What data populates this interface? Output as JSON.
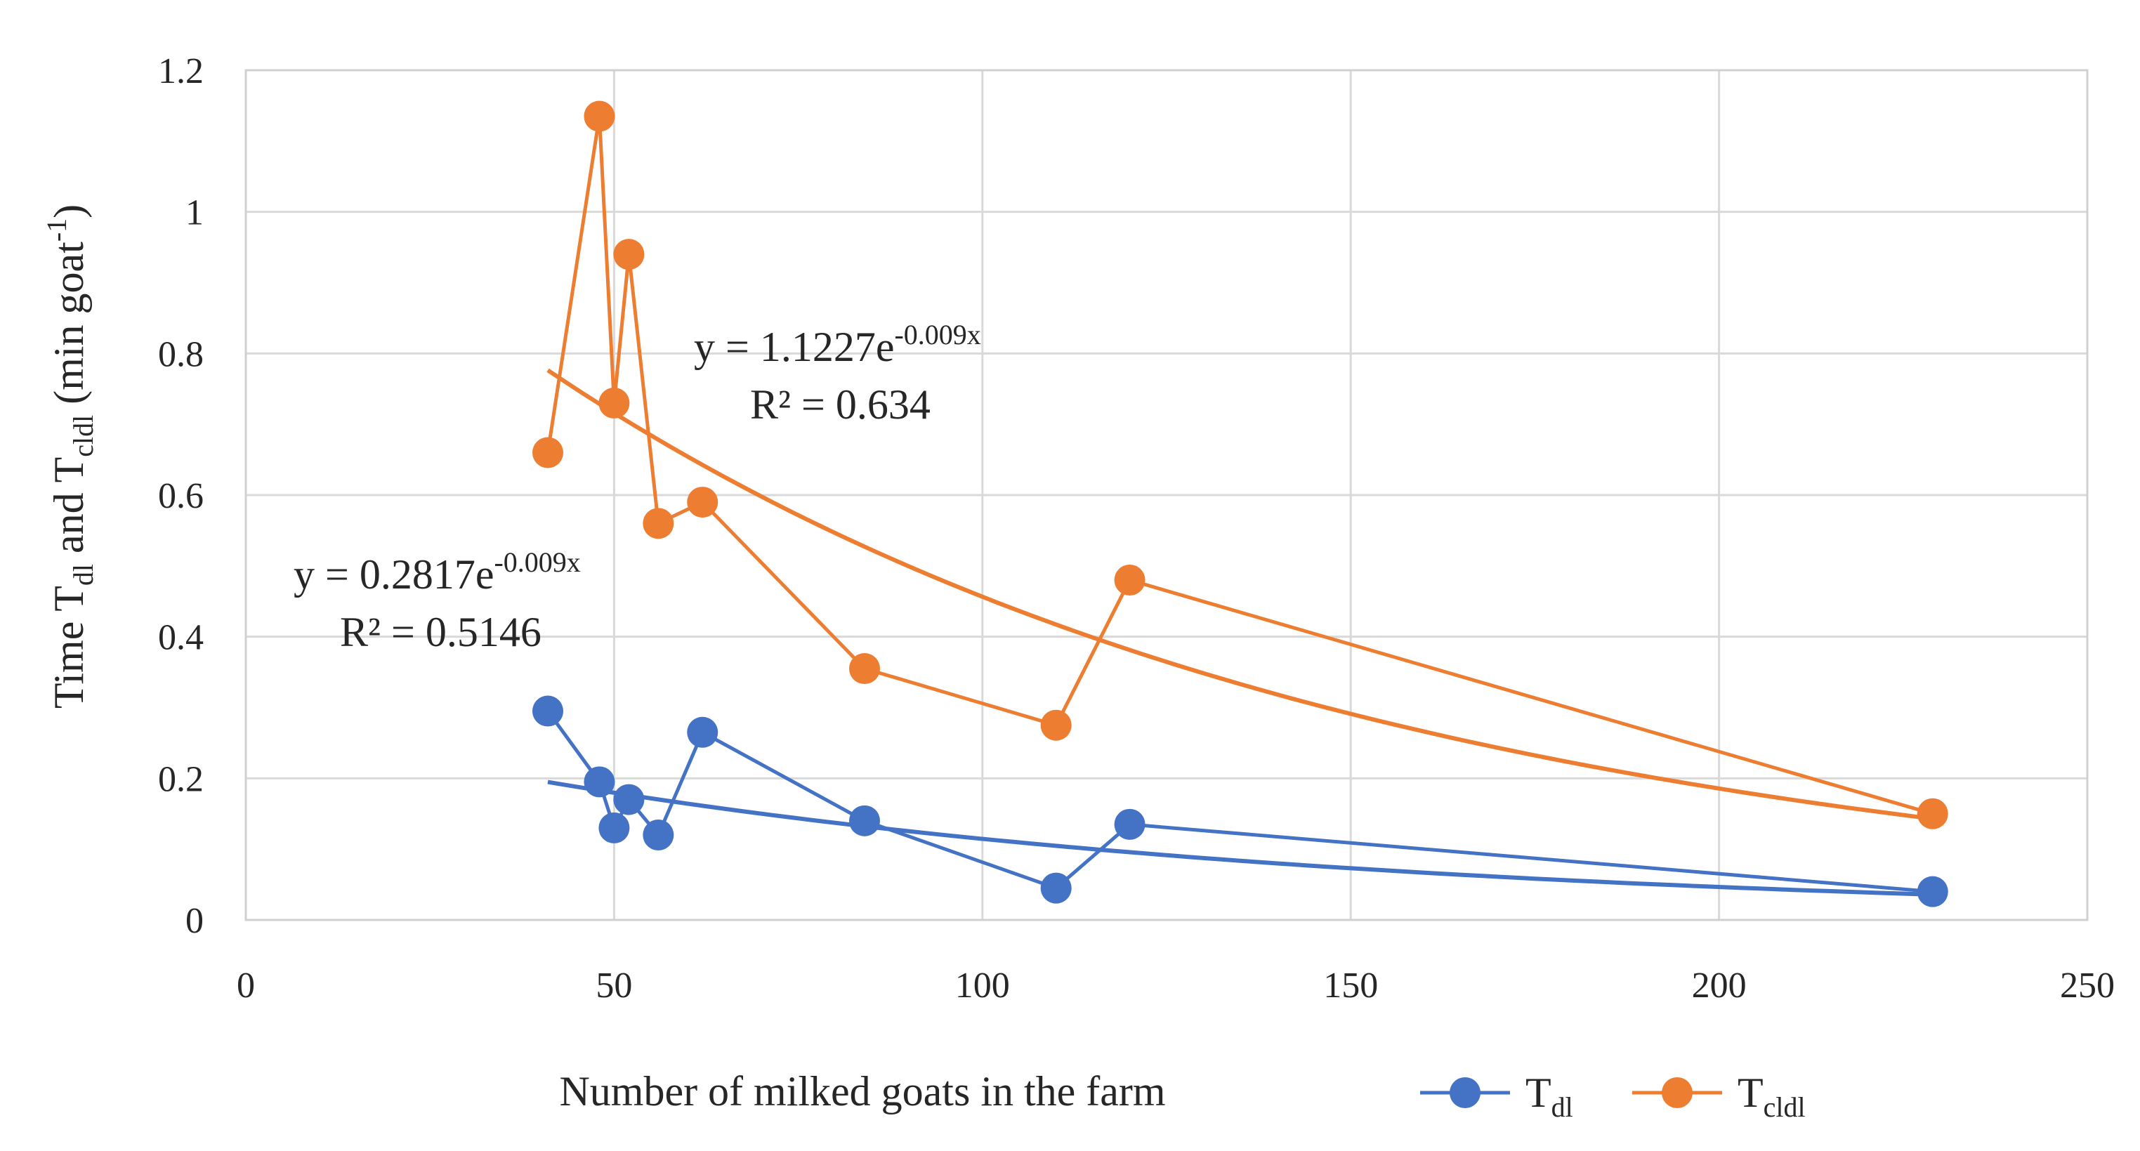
{
  "chart_data": {
    "type": "scatter",
    "title": "",
    "xlabel": "Number of milked goats in the farm",
    "ylabel": {
      "prefix": "Time T",
      "sub1": "dl",
      "mid": " and T",
      "sub2": "cldl",
      "unit_prefix": " (min goat",
      "unit_sup": "-1",
      "unit_suffix": ")"
    },
    "xlim": [
      0,
      250
    ],
    "ylim": [
      0,
      1.2
    ],
    "x_ticks": [
      0,
      50,
      100,
      150,
      200,
      250
    ],
    "y_ticks": [
      0,
      0.2,
      0.4,
      0.6,
      0.8,
      1,
      1.2
    ],
    "x_tick_labels": [
      "0",
      "50",
      "100",
      "150",
      "200",
      "250"
    ],
    "y_tick_labels": [
      "0",
      "0.2",
      "0.4",
      "0.6",
      "0.8",
      "1",
      "1.2"
    ],
    "grid": true,
    "legend_position": "bottom-right",
    "series": [
      {
        "name": "T",
        "name_sub": "dl",
        "color": "#4472C4",
        "points": [
          [
            41,
            0.295
          ],
          [
            48,
            0.195
          ],
          [
            50,
            0.13
          ],
          [
            52,
            0.17
          ],
          [
            56,
            0.12
          ],
          [
            62,
            0.265
          ],
          [
            84,
            0.14
          ],
          [
            110,
            0.045
          ],
          [
            120,
            0.135
          ],
          [
            229,
            0.04
          ]
        ],
        "trendline": {
          "a": 0.2817,
          "b": -0.009,
          "x_start": 41,
          "x_end": 229,
          "equation_text": "y = 0.2817e",
          "equation_exp": "-0.009x",
          "r2_text": "R² = 0.5146"
        }
      },
      {
        "name": "T",
        "name_sub": "cldl",
        "color": "#ED7D31",
        "points": [
          [
            41,
            0.66
          ],
          [
            48,
            1.135
          ],
          [
            50,
            0.73
          ],
          [
            52,
            0.94
          ],
          [
            56,
            0.56
          ],
          [
            62,
            0.59
          ],
          [
            84,
            0.355
          ],
          [
            110,
            0.275
          ],
          [
            120,
            0.48
          ],
          [
            229,
            0.15
          ]
        ],
        "trendline": {
          "a": 1.1227,
          "b": -0.009,
          "x_start": 41,
          "x_end": 229,
          "equation_text": "y = 1.1227e",
          "equation_exp": "-0.009x",
          "r2_text": "R² = 0.634"
        }
      }
    ]
  }
}
